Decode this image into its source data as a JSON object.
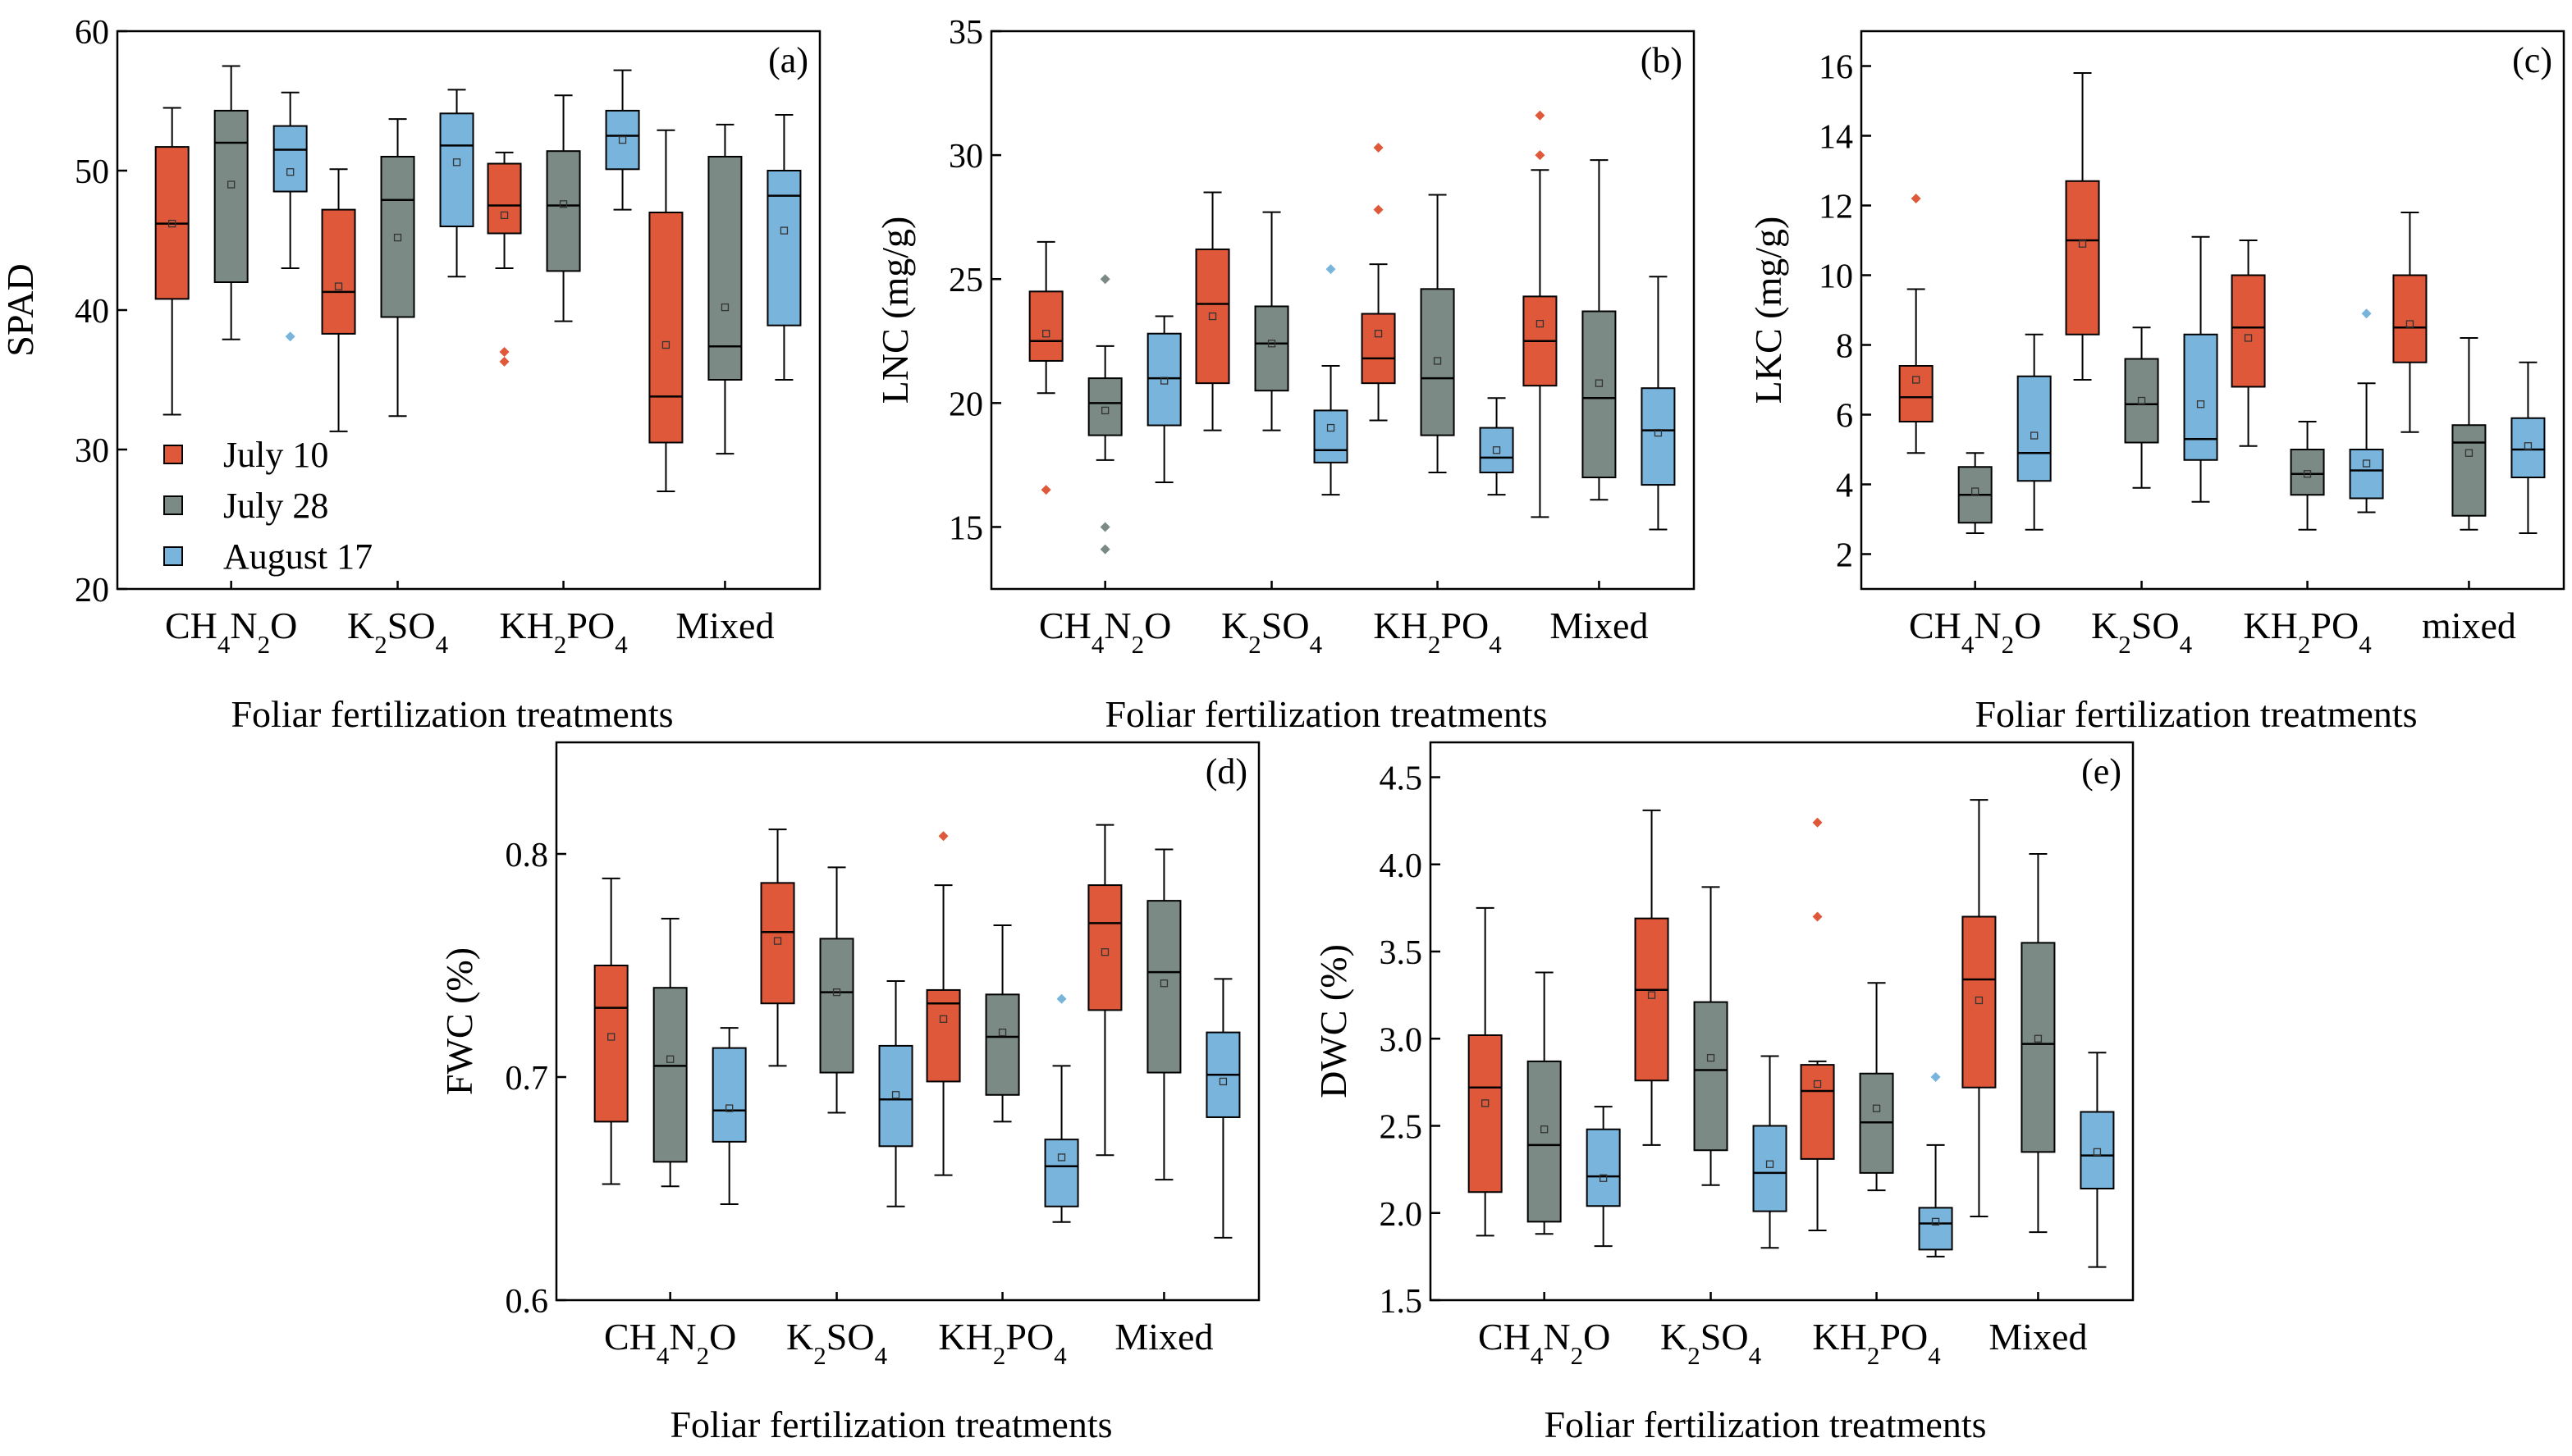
{
  "figure": {
    "xlabel": "Foliar fertilization treatments",
    "legend": [
      {
        "label": "July 10",
        "color": "#E0583A"
      },
      {
        "label": "July 28",
        "color": "#7B8A85"
      },
      {
        "label": "August 17",
        "color": "#78B4DC"
      }
    ]
  },
  "chart_data": [
    {
      "panel": "(a)",
      "type": "box",
      "ylabel": "SPAD",
      "ylim": [
        20,
        60
      ],
      "yticks": [
        20,
        30,
        40,
        50,
        60
      ],
      "categories": [
        "CH4N2O",
        "K2SO4",
        "KH2PO4",
        "Mixed"
      ],
      "series": [
        {
          "name": "July 10",
          "boxes": [
            {
              "min": 32.5,
              "q1": 40.8,
              "median": 46.2,
              "q3": 51.7,
              "max": 54.5,
              "mean": 46.2,
              "outliers": []
            },
            {
              "min": 31.3,
              "q1": 38.3,
              "median": 41.3,
              "q3": 47.2,
              "max": 50.1,
              "mean": 41.7,
              "outliers": []
            },
            {
              "min": 43.0,
              "q1": 45.5,
              "median": 47.5,
              "q3": 50.5,
              "max": 51.3,
              "mean": 46.8,
              "outliers": [
                37.0,
                36.3
              ]
            },
            {
              "min": 27.0,
              "q1": 30.5,
              "median": 33.8,
              "q3": 47.0,
              "max": 52.9,
              "mean": 37.5,
              "outliers": []
            }
          ]
        },
        {
          "name": "July 28",
          "boxes": [
            {
              "min": 37.9,
              "q1": 42.0,
              "median": 52.0,
              "q3": 54.3,
              "max": 57.5,
              "mean": 49.0,
              "outliers": []
            },
            {
              "min": 32.4,
              "q1": 39.5,
              "median": 47.9,
              "q3": 51.0,
              "max": 53.7,
              "mean": 45.2,
              "outliers": []
            },
            {
              "min": 39.2,
              "q1": 42.8,
              "median": 47.5,
              "q3": 51.4,
              "max": 55.4,
              "mean": 47.6,
              "outliers": []
            },
            {
              "min": 29.7,
              "q1": 35.0,
              "median": 37.4,
              "q3": 51.0,
              "max": 53.3,
              "mean": 40.2,
              "outliers": []
            }
          ]
        },
        {
          "name": "August 17",
          "boxes": [
            {
              "min": 43.0,
              "q1": 48.5,
              "median": 51.5,
              "q3": 53.2,
              "max": 55.6,
              "mean": 49.9,
              "outliers": [
                38.1
              ]
            },
            {
              "min": 42.4,
              "q1": 46.0,
              "median": 51.8,
              "q3": 54.1,
              "max": 55.8,
              "mean": 50.6,
              "outliers": []
            },
            {
              "min": 47.2,
              "q1": 50.1,
              "median": 52.5,
              "q3": 54.3,
              "max": 57.2,
              "mean": 52.2,
              "outliers": []
            },
            {
              "min": 35.0,
              "q1": 38.9,
              "median": 48.2,
              "q3": 50.0,
              "max": 54.0,
              "mean": 45.7,
              "outliers": []
            }
          ]
        }
      ]
    },
    {
      "panel": "(b)",
      "type": "box",
      "ylabel": "LNC (mg/g)",
      "ylim": [
        12.5,
        35
      ],
      "yticks": [
        15,
        20,
        25,
        30,
        35
      ],
      "categories": [
        "CH4N2O",
        "K2SO4",
        "KH2PO4",
        "Mixed"
      ],
      "series": [
        {
          "name": "July 10",
          "boxes": [
            {
              "min": 20.4,
              "q1": 21.7,
              "median": 22.5,
              "q3": 24.5,
              "max": 26.5,
              "mean": 22.8,
              "outliers": [
                16.5
              ]
            },
            {
              "min": 18.9,
              "q1": 20.8,
              "median": 24.0,
              "q3": 26.2,
              "max": 28.5,
              "mean": 23.5,
              "outliers": []
            },
            {
              "min": 19.3,
              "q1": 20.8,
              "median": 21.8,
              "q3": 23.6,
              "max": 25.6,
              "mean": 22.8,
              "outliers": [
                30.3,
                27.8
              ]
            },
            {
              "min": 15.4,
              "q1": 20.7,
              "median": 22.5,
              "q3": 24.3,
              "max": 29.4,
              "mean": 23.2,
              "outliers": [
                31.6,
                30.0
              ]
            }
          ]
        },
        {
          "name": "July 28",
          "boxes": [
            {
              "min": 17.7,
              "q1": 18.7,
              "median": 20.0,
              "q3": 21.0,
              "max": 22.3,
              "mean": 19.7,
              "outliers": [
                25.0,
                15.0,
                14.1
              ]
            },
            {
              "min": 18.9,
              "q1": 20.5,
              "median": 22.4,
              "q3": 23.9,
              "max": 27.7,
              "mean": 22.4,
              "outliers": []
            },
            {
              "min": 17.2,
              "q1": 18.7,
              "median": 21.0,
              "q3": 24.6,
              "max": 28.4,
              "mean": 21.7,
              "outliers": []
            },
            {
              "min": 16.1,
              "q1": 17.0,
              "median": 20.2,
              "q3": 23.7,
              "max": 29.8,
              "mean": 20.8,
              "outliers": []
            }
          ]
        },
        {
          "name": "August 17",
          "boxes": [
            {
              "min": 16.8,
              "q1": 19.1,
              "median": 21.0,
              "q3": 22.8,
              "max": 23.5,
              "mean": 20.9,
              "outliers": []
            },
            {
              "min": 16.3,
              "q1": 17.6,
              "median": 18.1,
              "q3": 19.7,
              "max": 21.5,
              "mean": 19.0,
              "outliers": [
                25.4
              ]
            },
            {
              "min": 16.3,
              "q1": 17.2,
              "median": 17.8,
              "q3": 19.0,
              "max": 20.2,
              "mean": 18.1,
              "outliers": []
            },
            {
              "min": 14.9,
              "q1": 16.7,
              "median": 18.9,
              "q3": 20.6,
              "max": 25.1,
              "mean": 18.8,
              "outliers": []
            }
          ]
        }
      ]
    },
    {
      "panel": "(c)",
      "type": "box",
      "ylabel": "LKC (mg/g)",
      "ylim": [
        1,
        17
      ],
      "yticks": [
        2,
        4,
        6,
        8,
        10,
        12,
        14,
        16
      ],
      "categories": [
        "CH4N2O",
        "K2SO4",
        "KH2PO4",
        "mixed"
      ],
      "series": [
        {
          "name": "July 10",
          "boxes": [
            {
              "min": 4.9,
              "q1": 5.8,
              "median": 6.5,
              "q3": 7.4,
              "max": 9.6,
              "mean": 7.0,
              "outliers": [
                12.2
              ]
            },
            {
              "min": 7.0,
              "q1": 8.3,
              "median": 11.0,
              "q3": 12.7,
              "max": 15.8,
              "mean": 10.9,
              "outliers": []
            },
            {
              "min": 5.1,
              "q1": 6.8,
              "median": 8.5,
              "q3": 10.0,
              "max": 11.0,
              "mean": 8.2,
              "outliers": []
            },
            {
              "min": 5.5,
              "q1": 7.5,
              "median": 8.5,
              "q3": 10.0,
              "max": 11.8,
              "mean": 8.6,
              "outliers": []
            }
          ]
        },
        {
          "name": "July 28",
          "boxes": [
            {
              "min": 2.6,
              "q1": 2.9,
              "median": 3.7,
              "q3": 4.5,
              "max": 4.9,
              "mean": 3.8,
              "outliers": []
            },
            {
              "min": 3.9,
              "q1": 5.2,
              "median": 6.3,
              "q3": 7.6,
              "max": 8.5,
              "mean": 6.4,
              "outliers": []
            },
            {
              "min": 2.7,
              "q1": 3.7,
              "median": 4.3,
              "q3": 5.0,
              "max": 5.8,
              "mean": 4.3,
              "outliers": []
            },
            {
              "min": 2.7,
              "q1": 3.1,
              "median": 5.2,
              "q3": 5.7,
              "max": 8.2,
              "mean": 4.9,
              "outliers": []
            }
          ]
        },
        {
          "name": "August 17",
          "boxes": [
            {
              "min": 2.7,
              "q1": 4.1,
              "median": 4.9,
              "q3": 7.1,
              "max": 8.3,
              "mean": 5.4,
              "outliers": []
            },
            {
              "min": 3.5,
              "q1": 4.7,
              "median": 5.3,
              "q3": 8.3,
              "max": 11.1,
              "mean": 6.3,
              "outliers": []
            },
            {
              "min": 3.2,
              "q1": 3.6,
              "median": 4.4,
              "q3": 5.0,
              "max": 6.9,
              "mean": 4.6,
              "outliers": [
                8.9
              ]
            },
            {
              "min": 2.6,
              "q1": 4.2,
              "median": 5.0,
              "q3": 5.9,
              "max": 7.5,
              "mean": 5.1,
              "outliers": []
            }
          ]
        }
      ]
    },
    {
      "panel": "(d)",
      "type": "box",
      "ylabel": "FWC (%)",
      "ylim": [
        0.6,
        0.85
      ],
      "yticks": [
        0.6,
        0.7,
        0.8
      ],
      "categories": [
        "CH4N2O",
        "K2SO4",
        "KH2PO4",
        "Mixed"
      ],
      "series": [
        {
          "name": "July 10",
          "boxes": [
            {
              "min": 0.652,
              "q1": 0.68,
              "median": 0.731,
              "q3": 0.75,
              "max": 0.789,
              "mean": 0.718,
              "outliers": []
            },
            {
              "min": 0.705,
              "q1": 0.733,
              "median": 0.765,
              "q3": 0.787,
              "max": 0.811,
              "mean": 0.761,
              "outliers": []
            },
            {
              "min": 0.656,
              "q1": 0.698,
              "median": 0.733,
              "q3": 0.739,
              "max": 0.786,
              "mean": 0.726,
              "outliers": [
                0.808
              ]
            },
            {
              "min": 0.665,
              "q1": 0.73,
              "median": 0.769,
              "q3": 0.786,
              "max": 0.813,
              "mean": 0.756,
              "outliers": []
            }
          ]
        },
        {
          "name": "July 28",
          "boxes": [
            {
              "min": 0.651,
              "q1": 0.662,
              "median": 0.705,
              "q3": 0.74,
              "max": 0.771,
              "mean": 0.708,
              "outliers": []
            },
            {
              "min": 0.684,
              "q1": 0.702,
              "median": 0.738,
              "q3": 0.762,
              "max": 0.794,
              "mean": 0.738,
              "outliers": []
            },
            {
              "min": 0.68,
              "q1": 0.692,
              "median": 0.718,
              "q3": 0.737,
              "max": 0.768,
              "mean": 0.72,
              "outliers": []
            },
            {
              "min": 0.654,
              "q1": 0.702,
              "median": 0.747,
              "q3": 0.779,
              "max": 0.802,
              "mean": 0.742,
              "outliers": []
            }
          ]
        },
        {
          "name": "August 17",
          "boxes": [
            {
              "min": 0.643,
              "q1": 0.671,
              "median": 0.685,
              "q3": 0.713,
              "max": 0.722,
              "mean": 0.686,
              "outliers": []
            },
            {
              "min": 0.642,
              "q1": 0.669,
              "median": 0.69,
              "q3": 0.714,
              "max": 0.743,
              "mean": 0.692,
              "outliers": []
            },
            {
              "min": 0.635,
              "q1": 0.642,
              "median": 0.66,
              "q3": 0.672,
              "max": 0.705,
              "mean": 0.664,
              "outliers": [
                0.735
              ]
            },
            {
              "min": 0.628,
              "q1": 0.682,
              "median": 0.701,
              "q3": 0.72,
              "max": 0.744,
              "mean": 0.698,
              "outliers": []
            }
          ]
        }
      ]
    },
    {
      "panel": "(e)",
      "type": "box",
      "ylabel": "DWC (%)",
      "ylim": [
        1.5,
        4.7
      ],
      "yticks": [
        1.5,
        2.0,
        2.5,
        3.0,
        3.5,
        4.0,
        4.5
      ],
      "categories": [
        "CH4N2O",
        "K2SO4",
        "KH2PO4",
        "Mixed"
      ],
      "series": [
        {
          "name": "July 10",
          "boxes": [
            {
              "min": 1.87,
              "q1": 2.12,
              "median": 2.72,
              "q3": 3.02,
              "max": 3.75,
              "mean": 2.63,
              "outliers": []
            },
            {
              "min": 2.39,
              "q1": 2.76,
              "median": 3.28,
              "q3": 3.69,
              "max": 4.31,
              "mean": 3.25,
              "outliers": []
            },
            {
              "min": 1.9,
              "q1": 2.31,
              "median": 2.7,
              "q3": 2.85,
              "max": 2.87,
              "mean": 2.74,
              "outliers": [
                4.24,
                3.7
              ]
            },
            {
              "min": 1.98,
              "q1": 2.72,
              "median": 3.34,
              "q3": 3.7,
              "max": 4.37,
              "mean": 3.22,
              "outliers": []
            }
          ]
        },
        {
          "name": "July 28",
          "boxes": [
            {
              "min": 1.88,
              "q1": 1.95,
              "median": 2.39,
              "q3": 2.87,
              "max": 3.38,
              "mean": 2.48,
              "outliers": []
            },
            {
              "min": 2.16,
              "q1": 2.36,
              "median": 2.82,
              "q3": 3.21,
              "max": 3.87,
              "mean": 2.89,
              "outliers": []
            },
            {
              "min": 2.13,
              "q1": 2.23,
              "median": 2.52,
              "q3": 2.8,
              "max": 3.32,
              "mean": 2.6,
              "outliers": []
            },
            {
              "min": 1.89,
              "q1": 2.35,
              "median": 2.97,
              "q3": 3.55,
              "max": 4.06,
              "mean": 3.0,
              "outliers": []
            }
          ]
        },
        {
          "name": "August 17",
          "boxes": [
            {
              "min": 1.81,
              "q1": 2.04,
              "median": 2.21,
              "q3": 2.48,
              "max": 2.61,
              "mean": 2.2,
              "outliers": []
            },
            {
              "min": 1.8,
              "q1": 2.01,
              "median": 2.23,
              "q3": 2.5,
              "max": 2.9,
              "mean": 2.28,
              "outliers": []
            },
            {
              "min": 1.75,
              "q1": 1.79,
              "median": 1.94,
              "q3": 2.03,
              "max": 2.39,
              "mean": 1.95,
              "outliers": [
                2.78
              ]
            },
            {
              "min": 1.69,
              "q1": 2.14,
              "median": 2.33,
              "q3": 2.58,
              "max": 2.92,
              "mean": 2.35,
              "outliers": []
            }
          ]
        }
      ]
    }
  ]
}
